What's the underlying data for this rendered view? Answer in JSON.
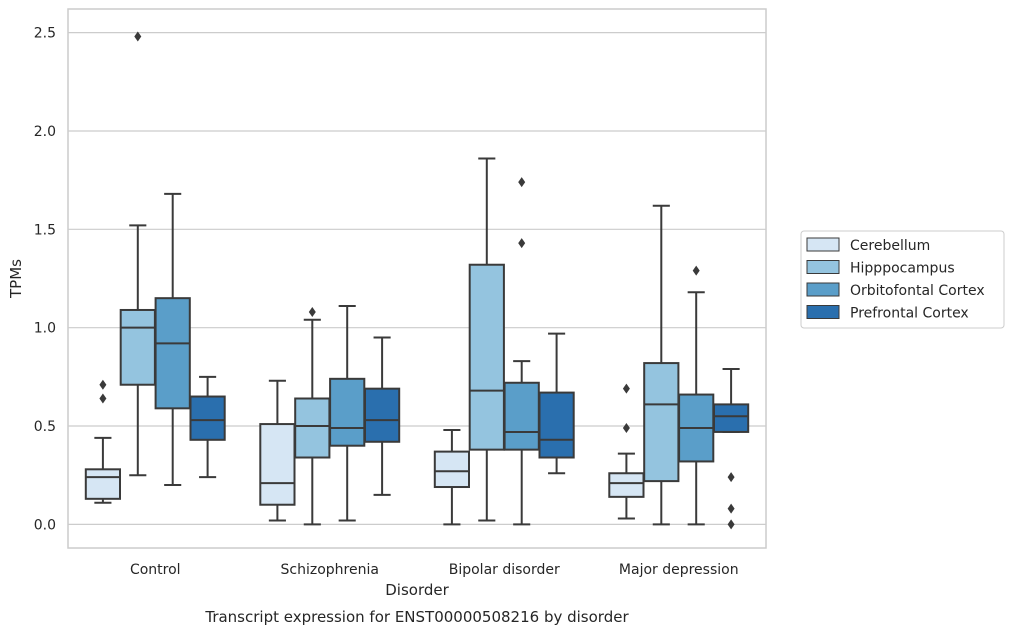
{
  "chart_data": {
    "type": "box",
    "title": "Transcript expression for ENST00000508216 by disorder",
    "xlabel": "Disorder",
    "ylabel": "TPMs",
    "ylim": [
      -0.12,
      2.62
    ],
    "yticks": [
      "0.0",
      "0.5",
      "1.0",
      "1.5",
      "2.0",
      "2.5"
    ],
    "grid": true,
    "legend_position": "right",
    "categories": [
      "Control",
      "Schizophrenia",
      "Bipolar disorder",
      "Major depression"
    ],
    "series": [
      {
        "name": "Cerebellum",
        "color": "#d6e6f4",
        "boxes": [
          {
            "whislo": 0.11,
            "q1": 0.13,
            "med": 0.24,
            "q3": 0.28,
            "whishi": 0.44,
            "fliers": [
              0.64,
              0.71
            ]
          },
          {
            "whislo": 0.02,
            "q1": 0.1,
            "med": 0.21,
            "q3": 0.51,
            "whishi": 0.73,
            "fliers": []
          },
          {
            "whislo": 0.0,
            "q1": 0.19,
            "med": 0.27,
            "q3": 0.37,
            "whishi": 0.48,
            "fliers": []
          },
          {
            "whislo": 0.03,
            "q1": 0.14,
            "med": 0.21,
            "q3": 0.26,
            "whishi": 0.36,
            "fliers": [
              0.49,
              0.69
            ]
          }
        ]
      },
      {
        "name": "Hipppocampus",
        "color": "#94c4df",
        "boxes": [
          {
            "whislo": 0.25,
            "q1": 0.71,
            "med": 1.0,
            "q3": 1.09,
            "whishi": 1.52,
            "fliers": [
              2.48
            ]
          },
          {
            "whislo": 0.0,
            "q1": 0.34,
            "med": 0.5,
            "q3": 0.64,
            "whishi": 1.04,
            "fliers": [
              1.08
            ]
          },
          {
            "whislo": 0.02,
            "q1": 0.38,
            "med": 0.68,
            "q3": 1.32,
            "whishi": 1.86,
            "fliers": []
          },
          {
            "whislo": 0.0,
            "q1": 0.22,
            "med": 0.61,
            "q3": 0.82,
            "whishi": 1.62,
            "fliers": []
          }
        ]
      },
      {
        "name": "Orbitofontal Cortex",
        "color": "#5a9ec9",
        "boxes": [
          {
            "whislo": 0.2,
            "q1": 0.59,
            "med": 0.92,
            "q3": 1.15,
            "whishi": 1.68,
            "fliers": []
          },
          {
            "whislo": 0.02,
            "q1": 0.4,
            "med": 0.49,
            "q3": 0.74,
            "whishi": 1.11,
            "fliers": []
          },
          {
            "whislo": 0.0,
            "q1": 0.38,
            "med": 0.47,
            "q3": 0.72,
            "whishi": 0.83,
            "fliers": [
              1.43,
              1.74
            ]
          },
          {
            "whislo": 0.0,
            "q1": 0.32,
            "med": 0.49,
            "q3": 0.66,
            "whishi": 1.18,
            "fliers": [
              1.29
            ]
          }
        ]
      },
      {
        "name": "Prefrontal Cortex",
        "color": "#2a6fae",
        "boxes": [
          {
            "whislo": 0.24,
            "q1": 0.43,
            "med": 0.53,
            "q3": 0.65,
            "whishi": 0.75,
            "fliers": []
          },
          {
            "whislo": 0.15,
            "q1": 0.42,
            "med": 0.53,
            "q3": 0.69,
            "whishi": 0.95,
            "fliers": []
          },
          {
            "whislo": 0.26,
            "q1": 0.34,
            "med": 0.43,
            "q3": 0.67,
            "whishi": 0.97,
            "fliers": []
          },
          {
            "whislo": 0.47,
            "q1": 0.47,
            "med": 0.55,
            "q3": 0.61,
            "whishi": 0.79,
            "fliers": [
              0.0,
              0.08,
              0.24
            ]
          }
        ]
      }
    ]
  }
}
